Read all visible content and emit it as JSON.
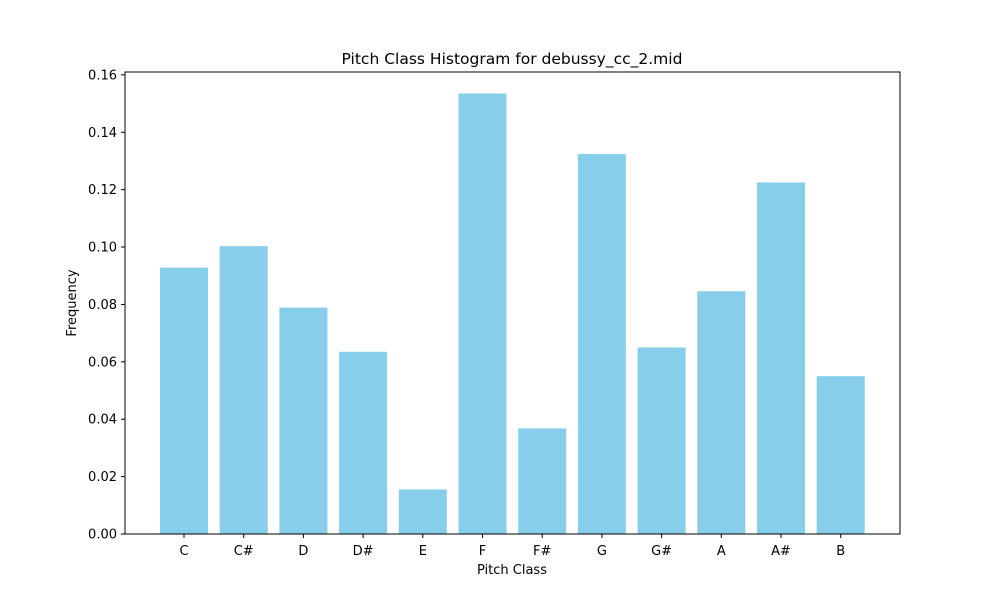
{
  "chart_data": {
    "type": "bar",
    "title": "Pitch Class Histogram for debussy_cc_2.mid",
    "xlabel": "Pitch Class",
    "ylabel": "Frequency",
    "categories": [
      "C",
      "C#",
      "D",
      "D#",
      "E",
      "F",
      "F#",
      "G",
      "G#",
      "A",
      "A#",
      "B"
    ],
    "values": [
      0.0928,
      0.1003,
      0.0789,
      0.0635,
      0.0155,
      0.1535,
      0.0368,
      0.1324,
      0.065,
      0.0846,
      0.1225,
      0.055
    ],
    "ylim": [
      0,
      0.161
    ],
    "yticks": [
      0.0,
      0.02,
      0.04,
      0.06,
      0.08,
      0.1,
      0.12,
      0.14,
      0.16
    ],
    "ytick_labels": [
      "0.00",
      "0.02",
      "0.04",
      "0.06",
      "0.08",
      "0.10",
      "0.12",
      "0.14",
      "0.16"
    ],
    "bar_color": "#87CEEB",
    "grid": false,
    "legend": "none"
  }
}
